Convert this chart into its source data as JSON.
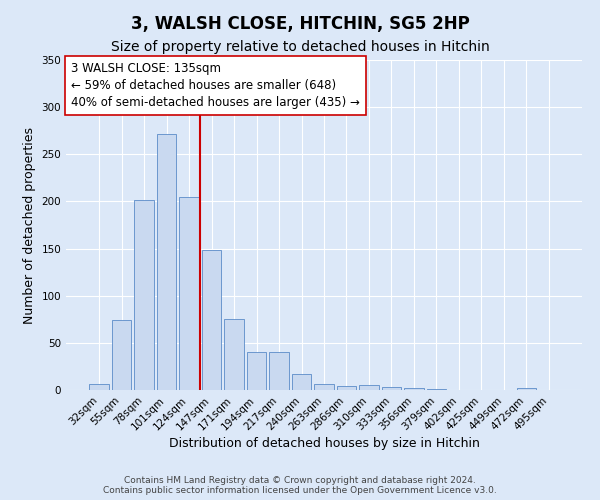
{
  "title": "3, WALSH CLOSE, HITCHIN, SG5 2HP",
  "subtitle": "Size of property relative to detached houses in Hitchin",
  "xlabel": "Distribution of detached houses by size in Hitchin",
  "ylabel": "Number of detached properties",
  "bar_labels": [
    "32sqm",
    "55sqm",
    "78sqm",
    "101sqm",
    "124sqm",
    "147sqm",
    "171sqm",
    "194sqm",
    "217sqm",
    "240sqm",
    "263sqm",
    "286sqm",
    "310sqm",
    "333sqm",
    "356sqm",
    "379sqm",
    "402sqm",
    "425sqm",
    "449sqm",
    "472sqm",
    "495sqm"
  ],
  "bar_values": [
    6,
    74,
    201,
    272,
    205,
    148,
    75,
    40,
    40,
    17,
    6,
    4,
    5,
    3,
    2,
    1,
    0,
    0,
    0,
    2,
    0
  ],
  "bar_color": "#c9d9f0",
  "bar_edge_color": "#5b8cc8",
  "vline_x": 4.5,
  "vline_color": "#cc0000",
  "annotation_line1": "3 WALSH CLOSE: 135sqm",
  "annotation_line2": "← 59% of detached houses are smaller (648)",
  "annotation_line3": "40% of semi-detached houses are larger (435) →",
  "annotation_box_color": "#ffffff",
  "annotation_box_edge_color": "#cc0000",
  "ylim": [
    0,
    350
  ],
  "yticks": [
    0,
    50,
    100,
    150,
    200,
    250,
    300,
    350
  ],
  "footer_text": "Contains HM Land Registry data © Crown copyright and database right 2024.\nContains public sector information licensed under the Open Government Licence v3.0.",
  "background_color": "#dce8f8",
  "grid_color": "#ffffff",
  "title_fontsize": 12,
  "subtitle_fontsize": 10,
  "axis_label_fontsize": 9,
  "tick_fontsize": 7.5,
  "annotation_fontsize": 8.5,
  "footer_fontsize": 6.5
}
